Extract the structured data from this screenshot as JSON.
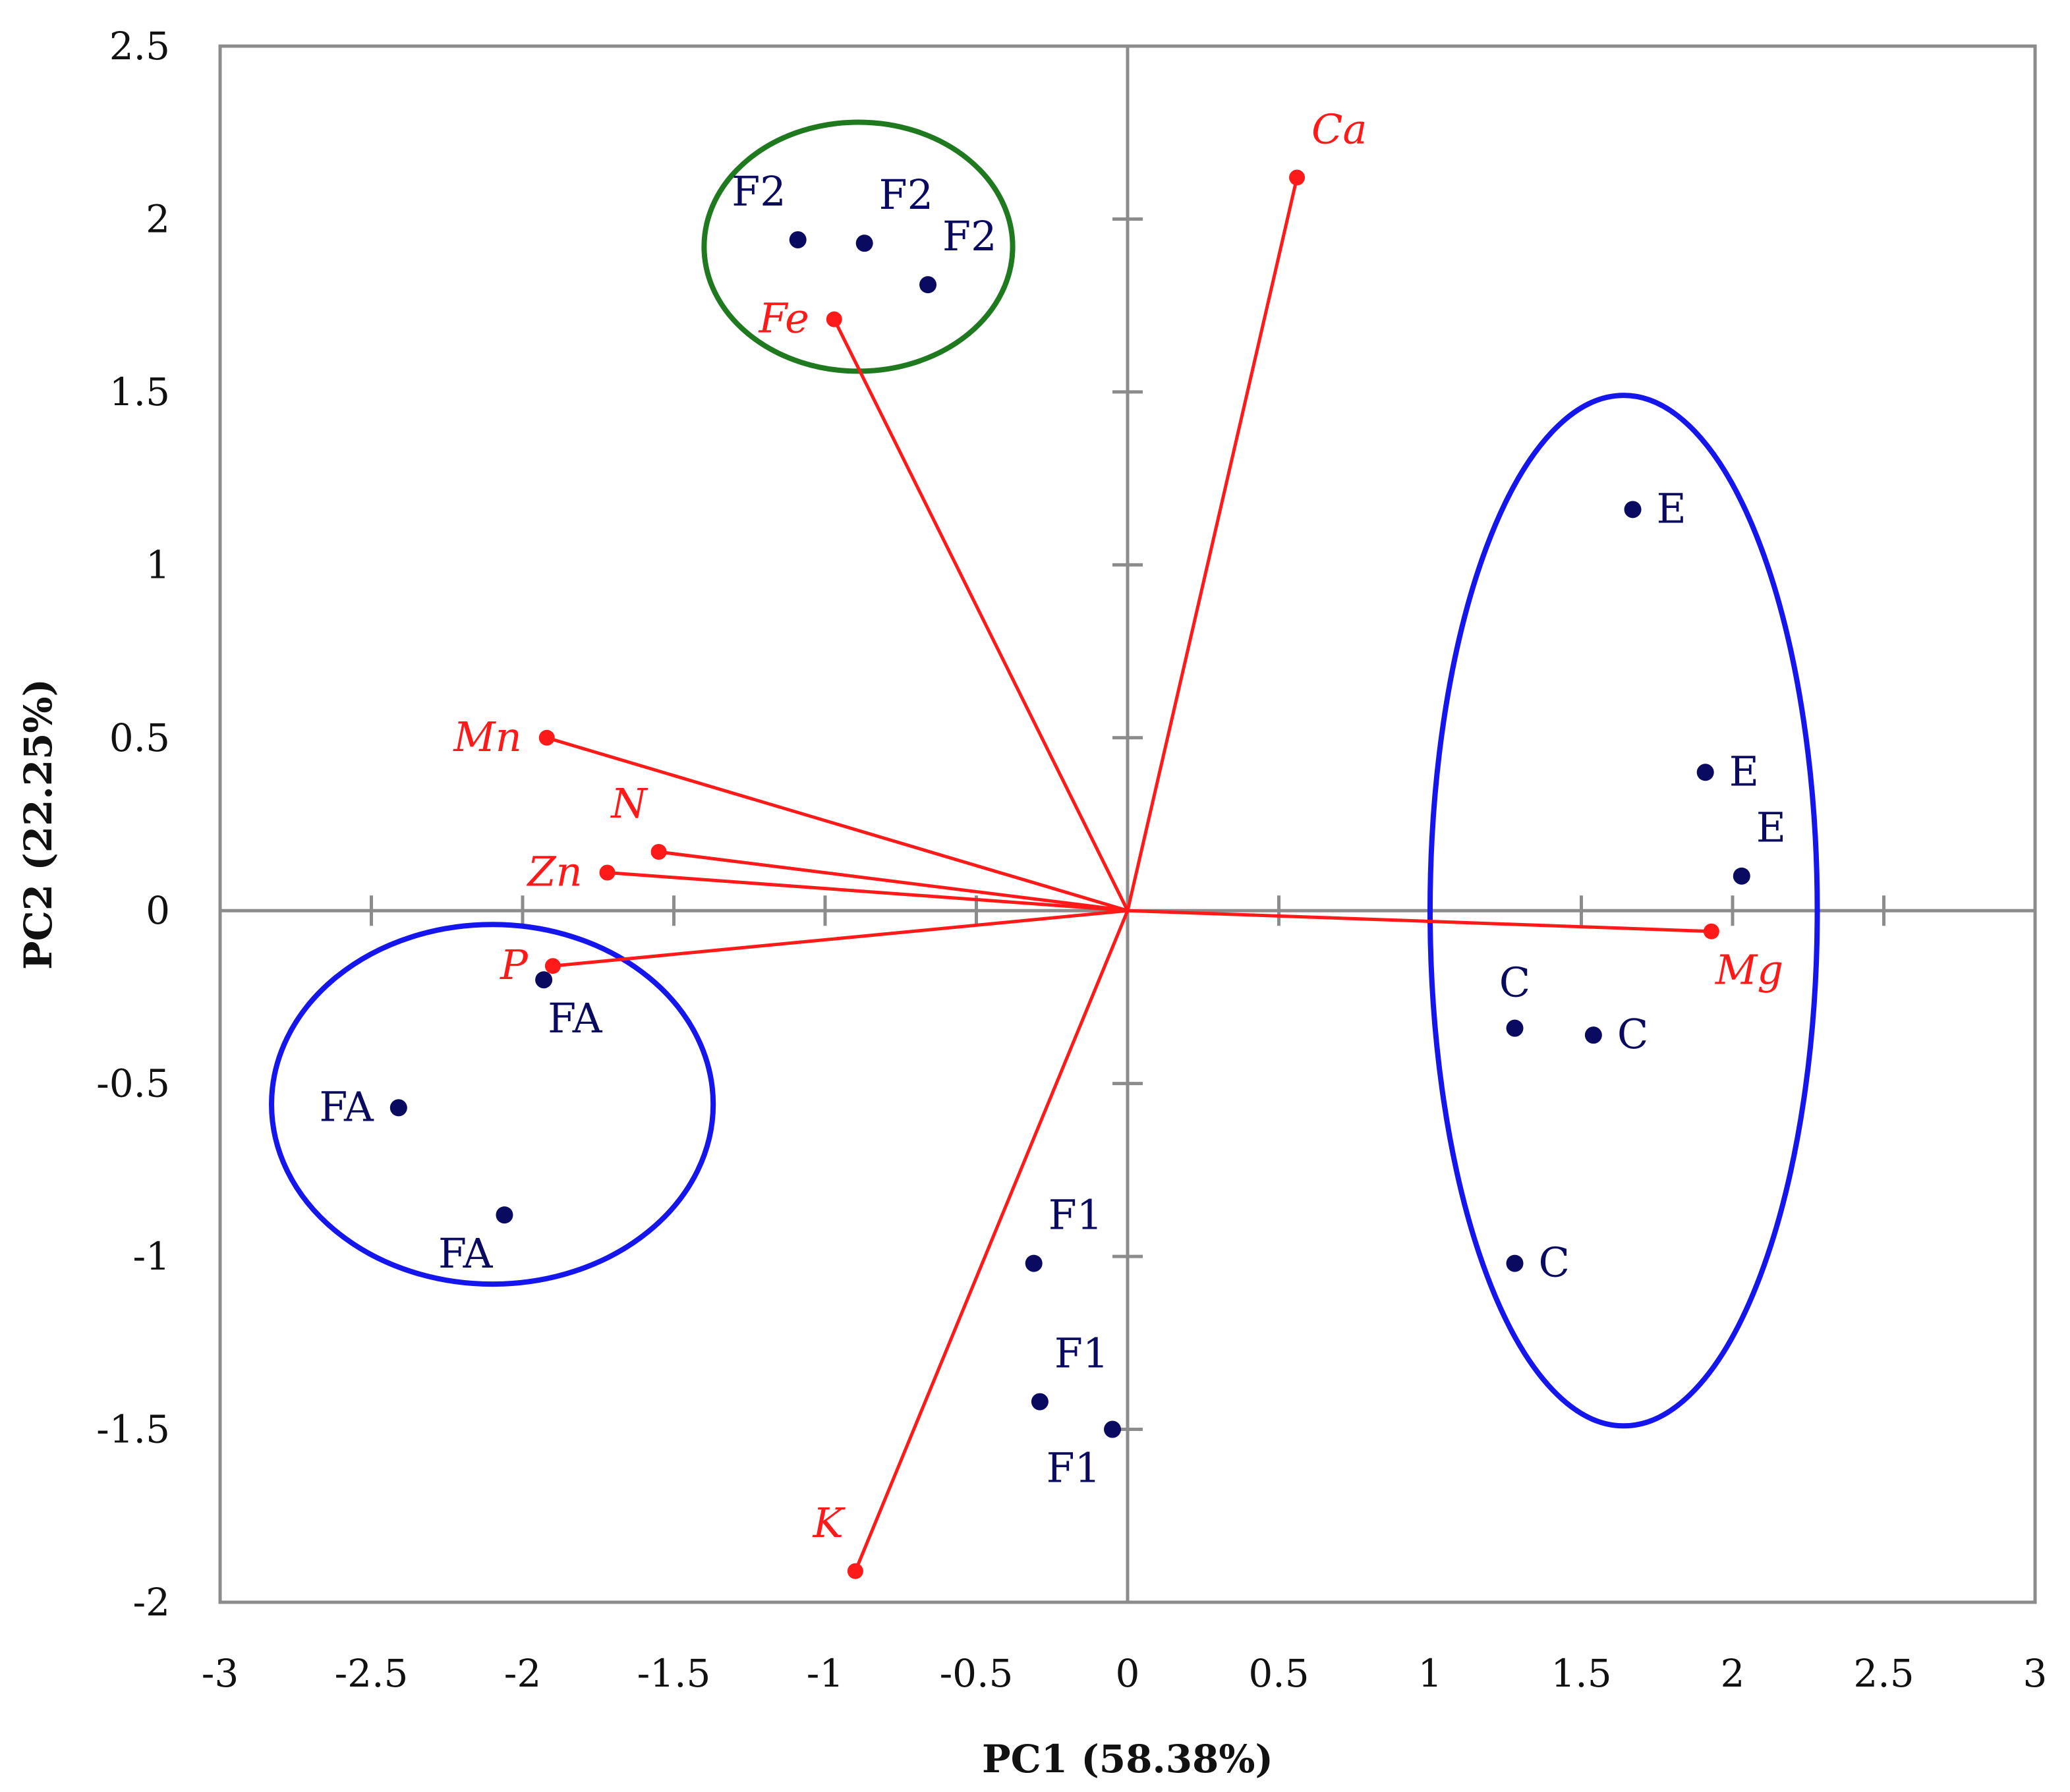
{
  "chart_data": {
    "type": "scatter",
    "subtype": "pca-biplot",
    "xlabel": "PC1 (58.38%)",
    "ylabel": "PC2 (22.25%)",
    "xlim": [
      -3,
      3
    ],
    "ylim": [
      -2,
      2.5
    ],
    "xticks": [
      "-3",
      "-2.5",
      "-2",
      "-1.5",
      "-1",
      "-0.5",
      "0",
      "0.5",
      "1",
      "1.5",
      "2",
      "2.5",
      "3"
    ],
    "yticks": [
      "2.5",
      "2",
      "1.5",
      "1",
      "0.5",
      "0",
      "-0.5",
      "-1",
      "-1.5",
      "-2"
    ],
    "xtick_values": [
      -3,
      -2.5,
      -2,
      -1.5,
      -1,
      -0.5,
      0,
      0.5,
      1,
      1.5,
      2,
      2.5,
      3
    ],
    "ytick_values": [
      2.5,
      2,
      1.5,
      1,
      0.5,
      0,
      -0.5,
      -1,
      -1.5,
      -2
    ],
    "colors": {
      "observations": "#0a0a60",
      "variables": "#ff1a1a",
      "axes": "#8c8c8c",
      "group_blue": "#1515ee",
      "group_green": "#1f7a1f"
    },
    "observations": [
      {
        "label": "F2",
        "x": -1.09,
        "y": 1.94,
        "label_pos": "above-left"
      },
      {
        "label": "F2",
        "x": -0.87,
        "y": 1.93,
        "label_pos": "above-right"
      },
      {
        "label": "F2",
        "x": -0.66,
        "y": 1.81,
        "label_pos": "above-right"
      },
      {
        "label": "E",
        "x": 1.67,
        "y": 1.16,
        "label_pos": "right"
      },
      {
        "label": "E",
        "x": 1.91,
        "y": 0.4,
        "label_pos": "right"
      },
      {
        "label": "E",
        "x": 2.03,
        "y": 0.1,
        "label_pos": "above-right"
      },
      {
        "label": "C",
        "x": 1.28,
        "y": -0.34,
        "label_pos": "above"
      },
      {
        "label": "C",
        "x": 1.54,
        "y": -0.36,
        "label_pos": "right"
      },
      {
        "label": "C",
        "x": 1.28,
        "y": -1.02,
        "label_pos": "right"
      },
      {
        "label": "FA",
        "x": -1.93,
        "y": -0.2,
        "label_pos": "below-right"
      },
      {
        "label": "FA",
        "x": -2.41,
        "y": -0.57,
        "label_pos": "left"
      },
      {
        "label": "FA",
        "x": -2.06,
        "y": -0.88,
        "label_pos": "below-left"
      },
      {
        "label": "F1",
        "x": -0.31,
        "y": -1.02,
        "label_pos": "above-right"
      },
      {
        "label": "F1",
        "x": -0.29,
        "y": -1.42,
        "label_pos": "above-right"
      },
      {
        "label": "F1",
        "x": -0.05,
        "y": -1.5,
        "label_pos": "below-left"
      }
    ],
    "variables": [
      {
        "label": "Ca",
        "x": 0.56,
        "y": 2.12,
        "label_pos": "above-right"
      },
      {
        "label": "Fe",
        "x": -0.97,
        "y": 1.71,
        "label_pos": "left"
      },
      {
        "label": "Mn",
        "x": -1.92,
        "y": 0.5,
        "label_pos": "left"
      },
      {
        "label": "N",
        "x": -1.55,
        "y": 0.17,
        "label_pos": "above-left"
      },
      {
        "label": "Zn",
        "x": -1.72,
        "y": 0.11,
        "label_pos": "left"
      },
      {
        "label": "P",
        "x": -1.9,
        "y": -0.16,
        "label_pos": "left"
      },
      {
        "label": "Mg",
        "x": 1.93,
        "y": -0.06,
        "label_pos": "below-right"
      },
      {
        "label": "K",
        "x": -0.9,
        "y": -1.91,
        "label_pos": "above-left"
      }
    ],
    "groups": [
      {
        "name": "F2-group",
        "color": "green",
        "cx": -0.89,
        "cy": 1.92,
        "rx": 0.51,
        "ry": 0.36
      },
      {
        "name": "E-C-group",
        "color": "blue",
        "cx": 1.64,
        "cy": 0.0,
        "rx": 0.64,
        "ry": 1.49
      },
      {
        "name": "FA-group",
        "color": "blue",
        "cx": -2.1,
        "cy": -0.56,
        "rx": 0.73,
        "ry": 0.52
      }
    ]
  }
}
